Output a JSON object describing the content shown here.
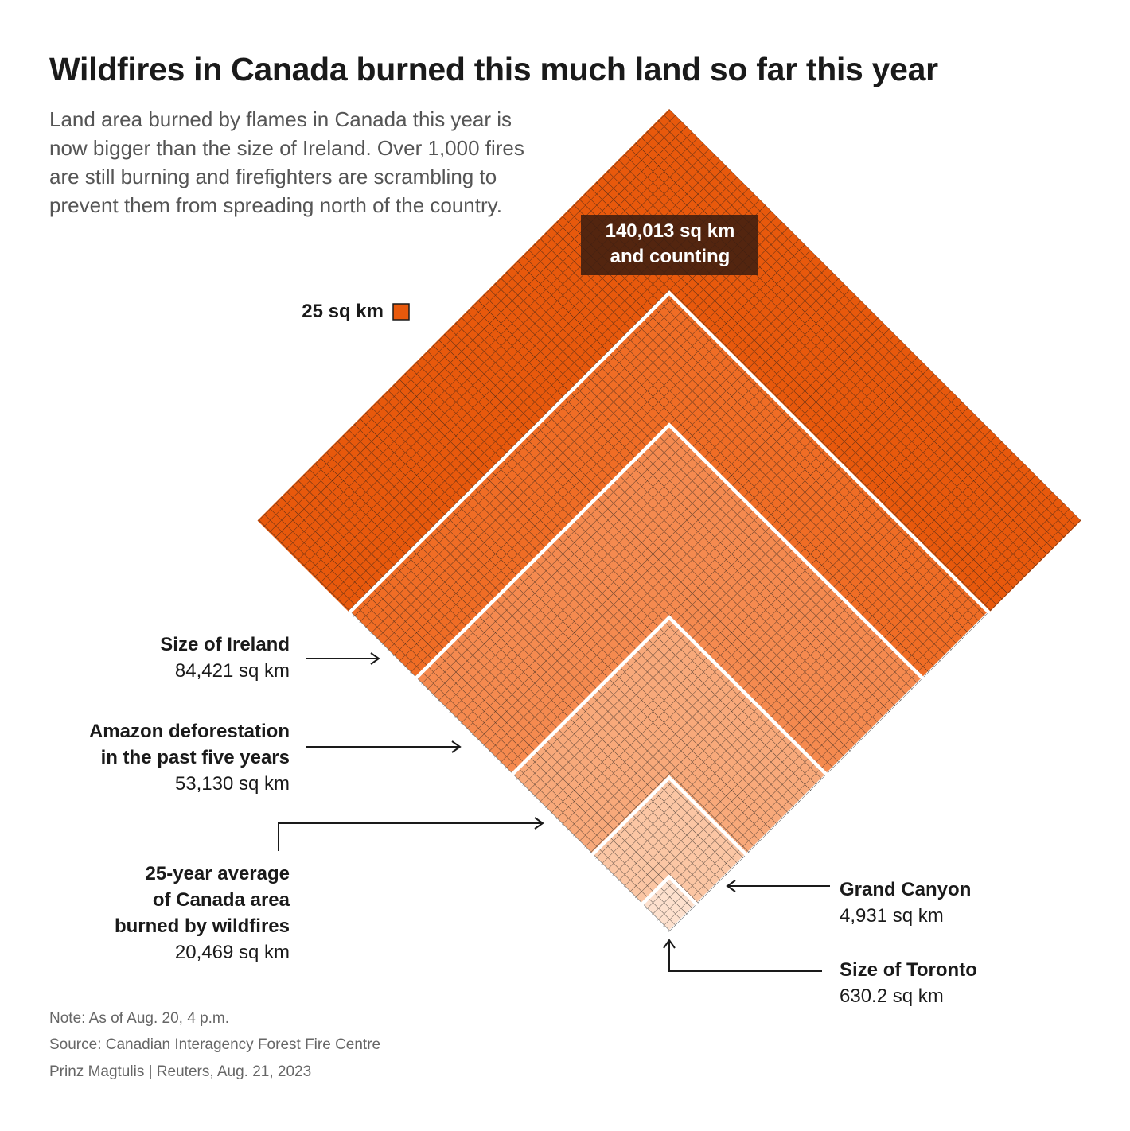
{
  "title": "Wildfires in Canada burned this much land so far this year",
  "subtitle": "Land area burned by flames in Canada this year is now bigger than the size of Ireland. Over 1,000 fires are still burning and firefighters are scrambling to prevent them from spreading north of the country.",
  "chart_data": {
    "type": "nested-square-waffle",
    "unit_label": "25 sq km",
    "unit_value": 25,
    "total": {
      "value": 140013,
      "label_line1": "140,013 sq km",
      "label_line2": "and counting",
      "color": "#e8590c"
    },
    "comparisons": [
      {
        "key": "ireland",
        "name_lines": [
          "Size of Ireland"
        ],
        "value": 84421,
        "value_label": "84,421 sq km",
        "color": "#f06d25"
      },
      {
        "key": "amazon",
        "name_lines": [
          "Amazon deforestation",
          "in the past five years"
        ],
        "value": 53130,
        "value_label": "53,130 sq km",
        "color": "#f58a4f"
      },
      {
        "key": "average",
        "name_lines": [
          "25-year average",
          "of Canada area",
          "burned by wildfires"
        ],
        "value": 20469,
        "value_label": "20,469 sq km",
        "color": "#f8a97a"
      },
      {
        "key": "canyon",
        "name_lines": [
          "Grand Canyon"
        ],
        "value": 4931,
        "value_label": "4,931 sq km",
        "color": "#fbc6a4"
      },
      {
        "key": "toronto",
        "name_lines": [
          "Size of Toronto"
        ],
        "value": 630.2,
        "value_label": "630.2 sq km",
        "color": "#fde0cd"
      }
    ]
  },
  "footer": {
    "note": "Note: As of Aug. 20, 4 p.m.",
    "source": "Source: Canadian Interagency Forest Fire Centre",
    "credit": "Prinz Magtulis |  Reuters, Aug. 21, 2023"
  }
}
